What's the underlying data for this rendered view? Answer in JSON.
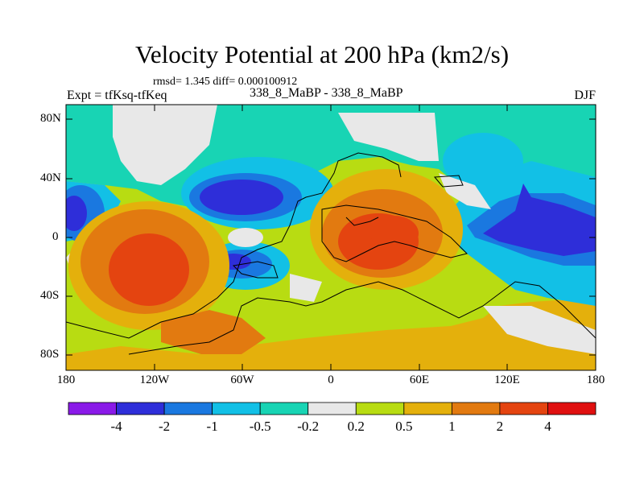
{
  "title": "Velocity Potential at 200 hPa (km2/s)",
  "stats": "rmsd= 1.345 diff= 0.000100912",
  "experiment": "Expt = tfKsq-tfKeq",
  "cases": "338_8_MaBP - 338_8_MaBP",
  "season": "DJF",
  "axes": {
    "lat_labels": [
      "80N",
      "40N",
      "0",
      "40S",
      "80S"
    ],
    "lon_labels": [
      "180",
      "120W",
      "60W",
      "0",
      "60E",
      "120E",
      "180"
    ]
  },
  "colorbar": {
    "labels": [
      "-4",
      "-2",
      "-1",
      "-0.5",
      "-0.2",
      "0.2",
      "0.5",
      "1",
      "2",
      "4"
    ],
    "colors": [
      "#8a1ae8",
      "#2e2ed9",
      "#1a78e0",
      "#12c0e6",
      "#18d4b4",
      "#e8e8e8",
      "#b8dc12",
      "#e4b00c",
      "#e27a10",
      "#e44410",
      "#e01010"
    ]
  }
}
